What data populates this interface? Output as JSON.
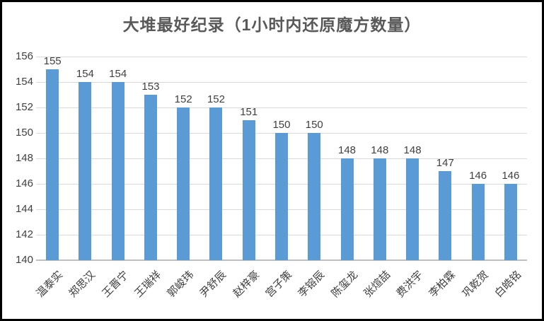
{
  "title": "大堆最好纪录（1小时内还原魔方数量）",
  "colors": {
    "bar": "#5B9BD5",
    "gridline": "#D9D9D9",
    "axis_line": "#BFBFBF",
    "title_text": "#595959",
    "label_text": "#404040"
  },
  "y_axis": {
    "tick_labels": [
      "156",
      "154",
      "152",
      "150",
      "148",
      "146",
      "144",
      "142",
      "140"
    ]
  },
  "chart_data": {
    "type": "bar",
    "title": "大堆最好纪录（1小时内还原魔方数量）",
    "categories": [
      "温泰实",
      "郑思汉",
      "王晋宁",
      "王瑞祥",
      "郭峻玮",
      "尹舒辰",
      "赵梓豪",
      "宫子策",
      "李镕辰",
      "陈玺龙",
      "张煊喆",
      "费洪宇",
      "李柏霖",
      "巩乾贺",
      "白皓铭"
    ],
    "values": [
      155,
      154,
      154,
      153,
      152,
      152,
      151,
      150,
      150,
      148,
      148,
      148,
      147,
      146,
      146
    ],
    "xlabel": "",
    "ylabel": "",
    "ylim": [
      140,
      156
    ],
    "ytick_step": 2,
    "grid": true,
    "legend": "none",
    "data_labels": true
  }
}
